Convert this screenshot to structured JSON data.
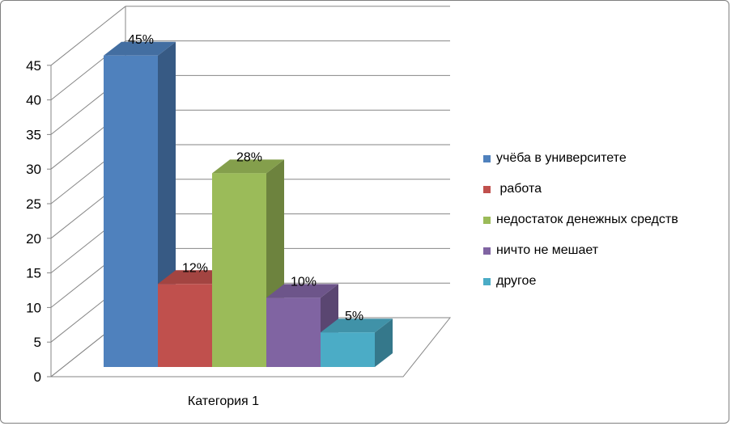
{
  "chart_data": {
    "type": "bar",
    "categories": [
      "Категория 1"
    ],
    "series": [
      {
        "name": "учёба в университете",
        "values": [
          45
        ],
        "label": "45%",
        "color": "#4f81bd"
      },
      {
        "name": " работа",
        "values": [
          12
        ],
        "label": "12%",
        "color": "#c0504d"
      },
      {
        "name": "недостаток денежных средств",
        "values": [
          28
        ],
        "label": "28%",
        "color": "#9bbb59"
      },
      {
        "name": "ничто не мешает",
        "values": [
          10
        ],
        "label": "10%",
        "color": "#8064a2"
      },
      {
        "name": "другое",
        "values": [
          5
        ],
        "label": "5%",
        "color": "#4bacc6"
      }
    ],
    "ylim": [
      0,
      45
    ],
    "yticks": [
      "0",
      "5",
      "10",
      "15",
      "20",
      "25",
      "30",
      "35",
      "40",
      "45"
    ],
    "grid": true,
    "legend": "right",
    "style": "3d-clustered-column"
  }
}
